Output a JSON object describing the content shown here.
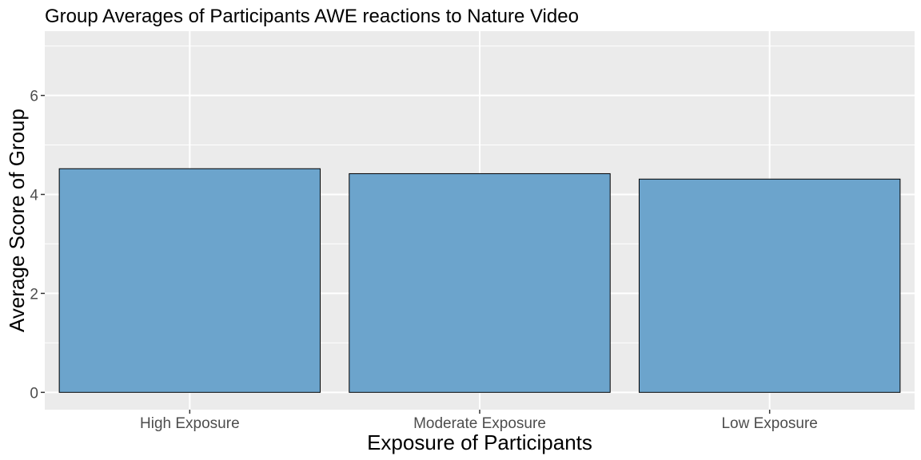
{
  "chart_data": {
    "type": "bar",
    "title": "Group Averages of Participants AWE reactions to Nature Video",
    "xlabel": "Exposure of Participants",
    "ylabel": "Average Score of Group",
    "categories": [
      "High Exposure",
      "Moderate Exposure",
      "Low Exposure"
    ],
    "values": [
      4.52,
      4.42,
      4.31
    ],
    "ylim": [
      -0.35,
      7.3
    ],
    "yticks": [
      0,
      2,
      4,
      6
    ],
    "ytick_labels": [
      "0",
      "2",
      "4",
      "6"
    ],
    "grid": true,
    "legend": "none",
    "colors": {
      "bar_fill": "#6CA4CC",
      "bar_stroke": "#000000",
      "panel_background": "#EBEBEB",
      "grid": "#FFFFFF"
    }
  }
}
